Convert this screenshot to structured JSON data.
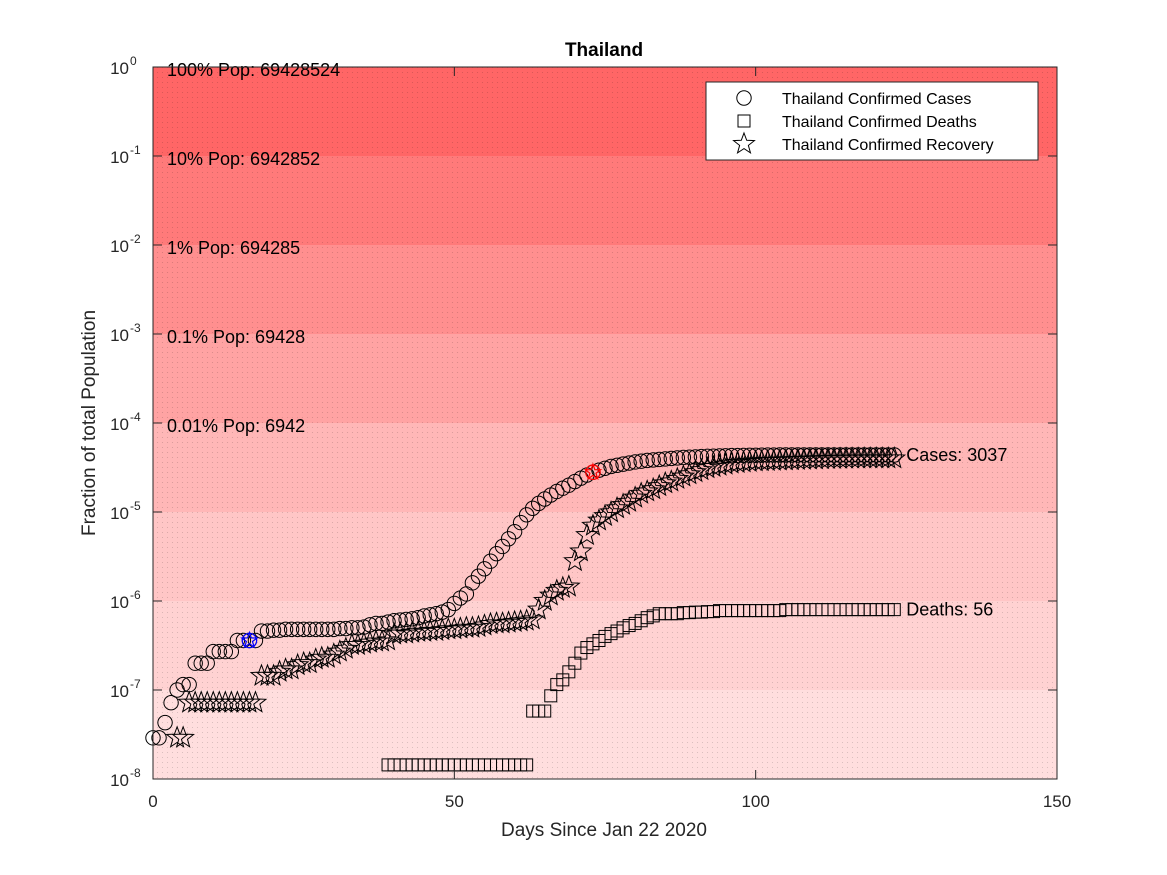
{
  "chart_data": {
    "type": "scatter",
    "title": "Thailand",
    "xlabel": "Days Since Jan 22 2020",
    "ylabel": "Fraction of total Population",
    "xlim": [
      0,
      150
    ],
    "ylim_log10": [
      -8,
      0
    ],
    "yscale": "log",
    "grid": false,
    "legend_position": "top-right",
    "x_ticks": [
      0,
      50,
      100,
      150
    ],
    "y_ticks": [
      {
        "base": "10",
        "exp": "0"
      },
      {
        "base": "10",
        "exp": "-1"
      },
      {
        "base": "10",
        "exp": "-2"
      },
      {
        "base": "10",
        "exp": "-3"
      },
      {
        "base": "10",
        "exp": "-4"
      },
      {
        "base": "10",
        "exp": "-5"
      },
      {
        "base": "10",
        "exp": "-6"
      },
      {
        "base": "10",
        "exp": "-7"
      },
      {
        "base": "10",
        "exp": "-8"
      }
    ],
    "population_bands": [
      {
        "label": "100% Pop: 69428524",
        "fraction": 1,
        "color": "#ff6666"
      },
      {
        "label": "10% Pop: 6942852",
        "fraction": 0.1,
        "color": "#ff7a7a"
      },
      {
        "label": "1% Pop: 694285",
        "fraction": 0.01,
        "color": "#ff8f8f"
      },
      {
        "label": "0.1% Pop: 69428",
        "fraction": 0.001,
        "color": "#ffa3a3"
      },
      {
        "label": "0.01% Pop: 6942",
        "fraction": 0.0001,
        "color": "#ffb7b7"
      },
      {
        "fraction": 1e-05,
        "color": "#ffc6c6"
      },
      {
        "fraction": 1e-06,
        "color": "#ffd2d2"
      },
      {
        "fraction": 1e-07,
        "color": "#ffdede"
      }
    ],
    "series": [
      {
        "name": "Thailand Confirmed Cases",
        "marker": "circle",
        "end_label": "Cases: 3037",
        "x": [
          0,
          1,
          2,
          3,
          4,
          5,
          6,
          7,
          8,
          9,
          10,
          11,
          12,
          13,
          14,
          15,
          16,
          17,
          18,
          19,
          20,
          21,
          22,
          23,
          24,
          25,
          26,
          27,
          28,
          29,
          30,
          31,
          32,
          33,
          34,
          35,
          36,
          37,
          38,
          39,
          40,
          41,
          42,
          43,
          44,
          45,
          46,
          47,
          48,
          49,
          50,
          51,
          52,
          53,
          54,
          55,
          56,
          57,
          58,
          59,
          60,
          61,
          62,
          63,
          64,
          65,
          66,
          67,
          68,
          69,
          70,
          71,
          72,
          73,
          74,
          75,
          76,
          77,
          78,
          79,
          80,
          81,
          82,
          83,
          84,
          85,
          86,
          87,
          88,
          89,
          90,
          91,
          92,
          93,
          94,
          95,
          96,
          97,
          98,
          99,
          100,
          101,
          102,
          103,
          104,
          105,
          106,
          107,
          108,
          109,
          110,
          111,
          112,
          113,
          114,
          115,
          116,
          117,
          118,
          119,
          120,
          121,
          122,
          123
        ],
        "y": [
          2.9e-08,
          2.9e-08,
          4.3e-08,
          7.2e-08,
          1e-07,
          1.15e-07,
          1.15e-07,
          2e-07,
          2e-07,
          2e-07,
          2.7e-07,
          2.7e-07,
          2.7e-07,
          2.7e-07,
          3.6e-07,
          3.6e-07,
          3.6e-07,
          3.6e-07,
          4.6e-07,
          4.6e-07,
          4.7e-07,
          4.7e-07,
          4.8e-07,
          4.8e-07,
          4.8e-07,
          4.8e-07,
          4.8e-07,
          4.8e-07,
          4.8e-07,
          4.8e-07,
          4.8e-07,
          4.9e-07,
          4.9e-07,
          5e-07,
          5e-07,
          5.1e-07,
          5.4e-07,
          5.6e-07,
          5.6e-07,
          5.8e-07,
          6e-07,
          6.1e-07,
          6.2e-07,
          6.3e-07,
          6.5e-07,
          6.8e-07,
          7e-07,
          7.2e-07,
          7.5e-07,
          8e-07,
          9.4e-07,
          1.08e-06,
          1.2e-06,
          1.6e-06,
          1.9e-06,
          2.3e-06,
          2.8e-06,
          3.4e-06,
          4.1e-06,
          5e-06,
          6e-06,
          7.6e-06,
          9.3e-06,
          1.1e-05,
          1.25e-05,
          1.4e-05,
          1.55e-05,
          1.7e-05,
          1.85e-05,
          2e-05,
          2.2e-05,
          2.4e-05,
          2.6e-05,
          2.8e-05,
          2.95e-05,
          3.1e-05,
          3.25e-05,
          3.35e-05,
          3.45e-05,
          3.55e-05,
          3.65e-05,
          3.72e-05,
          3.8e-05,
          3.85e-05,
          3.9e-05,
          3.95e-05,
          4e-05,
          4.05e-05,
          4.1e-05,
          4.13e-05,
          4.16e-05,
          4.19e-05,
          4.22e-05,
          4.24e-05,
          4.26e-05,
          4.28e-05,
          4.3e-05,
          4.31e-05,
          4.32e-05,
          4.33e-05,
          4.34e-05,
          4.35e-05,
          4.36e-05,
          4.36e-05,
          4.37e-05,
          4.37e-05,
          4.37e-05,
          4.37e-05,
          4.37e-05,
          4.37e-05,
          4.37e-05,
          4.37e-05,
          4.37e-05,
          4.37e-05,
          4.37e-05,
          4.37e-05,
          4.37e-05,
          4.37e-05,
          4.37e-05,
          4.37e-05,
          4.37e-05,
          4.37e-05,
          4.37e-05,
          4.37e-05
        ],
        "highlight": [
          {
            "x": 16,
            "y": 3.6e-07,
            "color": "#0000ff"
          },
          {
            "x": 73,
            "y": 2.8e-05,
            "color": "#ff0000"
          }
        ]
      },
      {
        "name": "Thailand Confirmed Deaths",
        "marker": "square",
        "end_label": "Deaths: 56",
        "x": [
          39,
          40,
          41,
          42,
          43,
          44,
          45,
          46,
          47,
          48,
          49,
          50,
          51,
          52,
          53,
          54,
          55,
          56,
          57,
          58,
          59,
          60,
          61,
          62,
          63,
          64,
          65,
          66,
          67,
          68,
          69,
          70,
          71,
          72,
          73,
          74,
          75,
          76,
          77,
          78,
          79,
          80,
          81,
          82,
          83,
          84,
          85,
          86,
          87,
          88,
          89,
          90,
          91,
          92,
          93,
          94,
          95,
          96,
          97,
          98,
          99,
          100,
          101,
          102,
          103,
          104,
          105,
          106,
          107,
          108,
          109,
          110,
          111,
          112,
          113,
          114,
          115,
          116,
          117,
          118,
          119,
          120,
          121,
          122,
          123
        ],
        "y": [
          1.44e-08,
          1.44e-08,
          1.44e-08,
          1.44e-08,
          1.44e-08,
          1.44e-08,
          1.44e-08,
          1.44e-08,
          1.44e-08,
          1.44e-08,
          1.44e-08,
          1.44e-08,
          1.44e-08,
          1.44e-08,
          1.44e-08,
          1.44e-08,
          1.44e-08,
          1.44e-08,
          1.44e-08,
          1.44e-08,
          1.44e-08,
          1.44e-08,
          1.44e-08,
          1.44e-08,
          5.8e-08,
          5.8e-08,
          5.8e-08,
          8.6e-08,
          1.15e-07,
          1.3e-07,
          1.6e-07,
          2e-07,
          2.6e-07,
          3e-07,
          3.3e-07,
          3.6e-07,
          4e-07,
          4.3e-07,
          4.6e-07,
          5e-07,
          5.3e-07,
          5.6e-07,
          6e-07,
          6.5e-07,
          6.8e-07,
          7.2e-07,
          7.2e-07,
          7.2e-07,
          7.2e-07,
          7.4e-07,
          7.4e-07,
          7.5e-07,
          7.5e-07,
          7.6e-07,
          7.6e-07,
          7.8e-07,
          7.8e-07,
          7.8e-07,
          7.8e-07,
          7.8e-07,
          7.8e-07,
          7.8e-07,
          7.8e-07,
          7.8e-07,
          7.8e-07,
          7.8e-07,
          8e-07,
          8e-07,
          8e-07,
          8e-07,
          8e-07,
          8e-07,
          8e-07,
          8e-07,
          8e-07,
          8e-07,
          8e-07,
          8e-07,
          8e-07,
          8e-07,
          8e-07,
          8e-07,
          8e-07,
          8e-07,
          8e-07
        ]
      },
      {
        "name": "Thailand Confirmed Recovery",
        "marker": "star",
        "x": [
          4,
          5,
          6,
          7,
          8,
          9,
          10,
          11,
          12,
          13,
          14,
          15,
          16,
          17,
          18,
          19,
          20,
          21,
          22,
          23,
          24,
          25,
          26,
          27,
          28,
          29,
          30,
          31,
          32,
          33,
          34,
          35,
          36,
          37,
          38,
          39,
          40,
          41,
          42,
          43,
          44,
          45,
          46,
          47,
          48,
          49,
          50,
          51,
          52,
          53,
          54,
          55,
          56,
          57,
          58,
          59,
          60,
          61,
          62,
          63,
          64,
          65,
          66,
          67,
          68,
          69,
          70,
          71,
          72,
          73,
          74,
          75,
          76,
          77,
          78,
          79,
          80,
          81,
          82,
          83,
          84,
          85,
          86,
          87,
          88,
          89,
          90,
          91,
          92,
          93,
          94,
          95,
          96,
          97,
          98,
          99,
          100,
          101,
          102,
          103,
          104,
          105,
          106,
          107,
          108,
          109,
          110,
          111,
          112,
          113,
          114,
          115,
          116,
          117,
          118,
          119,
          120,
          121,
          122,
          123
        ],
        "y": [
          2.9e-08,
          2.9e-08,
          7.2e-08,
          7.2e-08,
          7.2e-08,
          7.2e-08,
          7.2e-08,
          7.2e-08,
          7.2e-08,
          7.2e-08,
          7.2e-08,
          7.2e-08,
          7.2e-08,
          7.2e-08,
          1.44e-07,
          1.44e-07,
          1.44e-07,
          1.6e-07,
          1.7e-07,
          1.7e-07,
          1.9e-07,
          2e-07,
          2e-07,
          2.2e-07,
          2.3e-07,
          2.3e-07,
          2.5e-07,
          2.7e-07,
          2.9e-07,
          3.2e-07,
          3.2e-07,
          3.3e-07,
          3.4e-07,
          3.5e-07,
          3.5e-07,
          3.6e-07,
          4.2e-07,
          4.3e-07,
          4.3e-07,
          4.4e-07,
          4.5e-07,
          4.5e-07,
          4.6e-07,
          4.6e-07,
          4.7e-07,
          4.8e-07,
          4.8e-07,
          4.9e-07,
          5e-07,
          5e-07,
          5.1e-07,
          5.3e-07,
          5.5e-07,
          5.6e-07,
          5.6e-07,
          5.7e-07,
          5.8e-07,
          5.9e-07,
          6e-07,
          6.2e-07,
          8e-07,
          1e-06,
          1.15e-06,
          1.3e-06,
          1.4e-06,
          1.45e-06,
          2.8e-06,
          3.6e-06,
          5.5e-06,
          7e-06,
          8e-06,
          9e-06,
          9.9e-06,
          1.1e-05,
          1.2e-05,
          1.3e-05,
          1.45e-05,
          1.6e-05,
          1.7e-05,
          1.8e-05,
          1.95e-05,
          2.1e-05,
          2.2e-05,
          2.35e-05,
          2.5e-05,
          2.65e-05,
          2.8e-05,
          2.95e-05,
          3.1e-05,
          3.2e-05,
          3.3e-05,
          3.4e-05,
          3.5e-05,
          3.55e-05,
          3.6e-05,
          3.65e-05,
          3.7e-05,
          3.72e-05,
          3.74e-05,
          3.76e-05,
          3.78e-05,
          3.8e-05,
          3.82e-05,
          3.84e-05,
          3.86e-05,
          3.88e-05,
          3.9e-05,
          3.92e-05,
          3.94e-05,
          3.95e-05,
          3.96e-05,
          3.97e-05,
          3.98e-05,
          3.99e-05,
          4e-05,
          4e-05,
          4e-05,
          4e-05,
          4e-05,
          4e-05
        ]
      }
    ]
  }
}
